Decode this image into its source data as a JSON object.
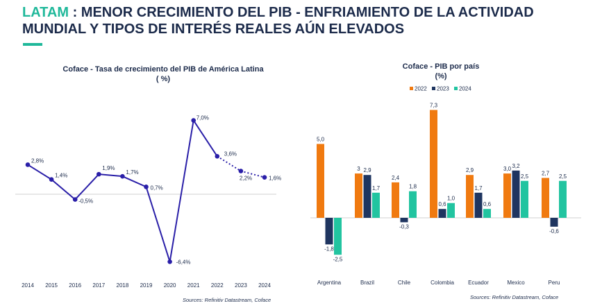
{
  "header": {
    "title_accent": "LATAM",
    "title_rest_line1": " : MENOR CRECIMIENTO DEL PIB - ENFRIAMIENTO DE LA ACTIVIDAD",
    "title_line2": "MUNDIAL Y TIPOS DE INTERÉS REALES AÚN ELEVADOS"
  },
  "colors": {
    "accent": "#1fb89a",
    "navy": "#1b2a4a",
    "line": "#2a1fa8",
    "s2022": "#f07a10",
    "s2023": "#1f3560",
    "s2024": "#22c4a0"
  },
  "chart_data": [
    {
      "type": "line",
      "title_line1": "Coface -  Tasa de crecimiento del PIB de América Latina",
      "title_line2": "( %)",
      "x": [
        "2014",
        "2015",
        "2016",
        "2017",
        "2018",
        "2019",
        "2020",
        "2021",
        "2022",
        "2023",
        "2024"
      ],
      "values": [
        2.8,
        1.4,
        -0.5,
        1.9,
        1.7,
        0.7,
        -6.4,
        7.0,
        3.6,
        2.2,
        1.6
      ],
      "labels": [
        "2,8%",
        "1,4%",
        "-0,5%",
        "1,9%",
        "1,7%",
        "0,7%",
        "-6,4%",
        "7,0%",
        "3,6%",
        "2,2%",
        "1,6%"
      ],
      "forecast_from_index": 8,
      "ylim": [
        -7.5,
        8.5
      ],
      "grid": false,
      "source": "Sources: Refinitiv Datastream, Coface"
    },
    {
      "type": "bar",
      "title_line1": "Coface -  PIB por país",
      "title_line2": "(%)",
      "categories": [
        "Argentina",
        "Brazil",
        "Chile",
        "Colombia",
        "Ecuador",
        "Mexico",
        "Peru"
      ],
      "series": [
        {
          "name": "2022",
          "values": [
            5.0,
            3.0,
            2.4,
            7.3,
            2.9,
            3.0,
            2.7
          ],
          "labels": [
            "5,0",
            "3",
            "2,4",
            "7,3",
            "2,9",
            "3,0",
            "2,7"
          ]
        },
        {
          "name": "2023",
          "values": [
            -1.8,
            2.9,
            -0.3,
            0.6,
            1.7,
            3.2,
            -0.6
          ],
          "labels": [
            "-1,8",
            "2,9",
            "-0,3",
            "0,6",
            "1,7",
            "3,2",
            "-0,6"
          ]
        },
        {
          "name": "2024",
          "values": [
            -2.5,
            1.7,
            1.8,
            1.0,
            0.6,
            2.5,
            2.5
          ],
          "labels": [
            "-2,5",
            "1,7",
            "1,8",
            "1,0",
            "0,6",
            "2,5",
            "2,5"
          ]
        }
      ],
      "legend_position": "top",
      "ylim": [
        -2.9,
        7.6
      ],
      "grid": false,
      "source": "Sources: Refinitiv Datastream, Coface"
    }
  ]
}
